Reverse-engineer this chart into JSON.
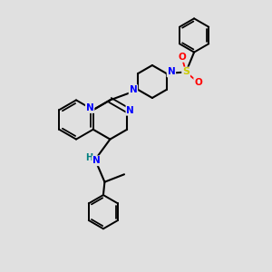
{
  "background_color": "#e0e0e0",
  "bond_color": "#000000",
  "N_color": "#0000ff",
  "S_color": "#cccc00",
  "O_color": "#ff0000",
  "H_color": "#008080",
  "figsize": [
    3.0,
    3.0
  ],
  "dpi": 100,
  "xlim": [
    0,
    10
  ],
  "ylim": [
    0,
    10
  ]
}
